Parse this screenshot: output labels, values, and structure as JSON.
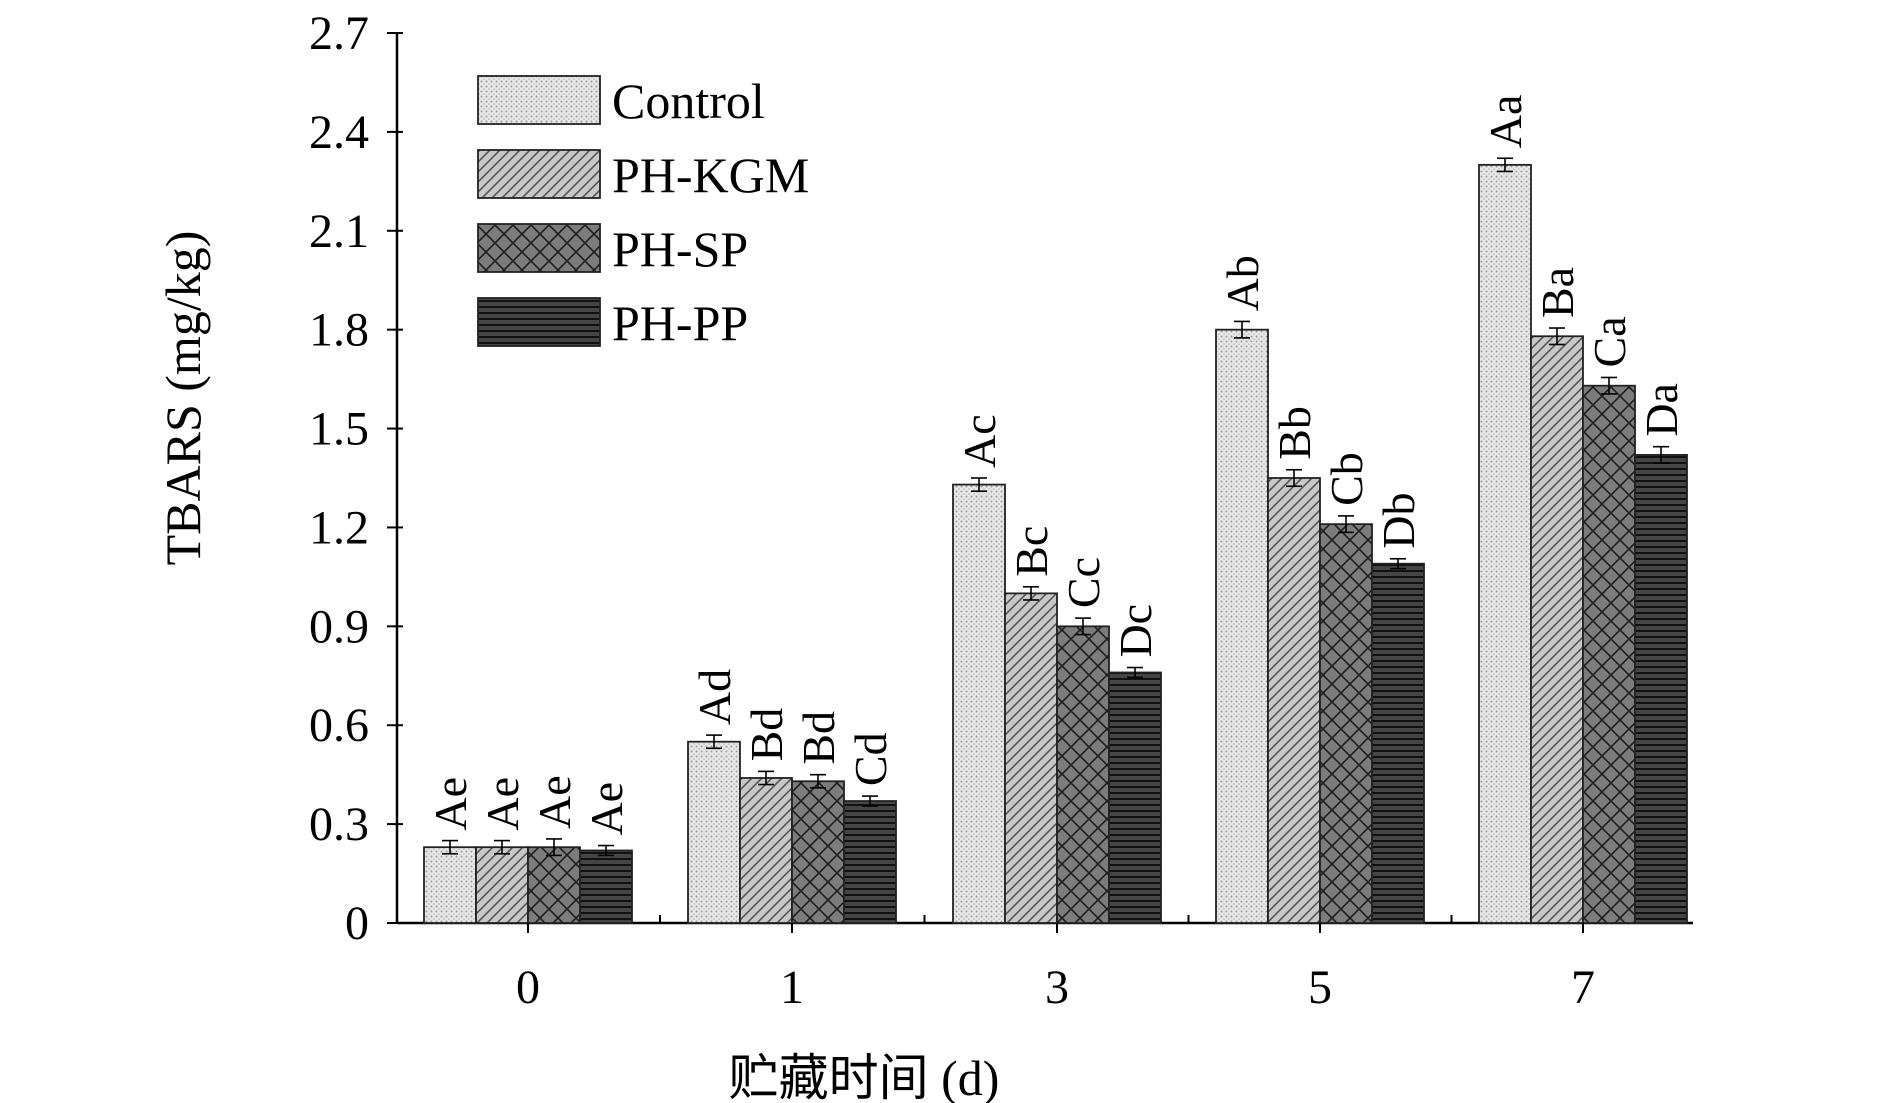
{
  "chart_data": {
    "type": "bar",
    "title": "",
    "xlabel": "贮藏时间 (d)",
    "ylabel": "TBARS (mg/kg)",
    "ylim": [
      0,
      2.7
    ],
    "yticks": [
      "0",
      "0.3",
      "0.6",
      "0.9",
      "1.2",
      "1.5",
      "1.8",
      "2.1",
      "2.4",
      "2.7"
    ],
    "categories": [
      "0",
      "1",
      "3",
      "5",
      "7"
    ],
    "legend_position": "top-left",
    "series": [
      {
        "name": "Control",
        "pattern": "dots",
        "fill": "#e6e6e6",
        "values": [
          0.23,
          0.55,
          1.33,
          1.8,
          2.3
        ],
        "errors": [
          0.02,
          0.02,
          0.02,
          0.025,
          0.02
        ],
        "labels": [
          "Ae",
          "Ad",
          "Ac",
          "Ab",
          "Aa"
        ]
      },
      {
        "name": "PH-KGM",
        "pattern": "diagonal",
        "fill": "#c6c6c6",
        "values": [
          0.23,
          0.44,
          1.0,
          1.35,
          1.78
        ],
        "errors": [
          0.02,
          0.02,
          0.02,
          0.025,
          0.025
        ],
        "labels": [
          "Ae",
          "Bd",
          "Bc",
          "Bb",
          "Ba"
        ]
      },
      {
        "name": "PH-SP",
        "pattern": "crosshatch",
        "fill": "#7a7a7a",
        "values": [
          0.23,
          0.43,
          0.9,
          1.21,
          1.63
        ],
        "errors": [
          0.025,
          0.02,
          0.025,
          0.025,
          0.025
        ],
        "labels": [
          "Ae",
          "Bd",
          "Cc",
          "Cb",
          "Ca"
        ]
      },
      {
        "name": "PH-PP",
        "pattern": "horizontal",
        "fill": "#3a3a3a",
        "values": [
          0.22,
          0.37,
          0.76,
          1.09,
          1.42
        ],
        "errors": [
          0.015,
          0.015,
          0.015,
          0.015,
          0.025
        ],
        "labels": [
          "Ae",
          "Cd",
          "Dc",
          "Db",
          "Da"
        ]
      }
    ]
  }
}
